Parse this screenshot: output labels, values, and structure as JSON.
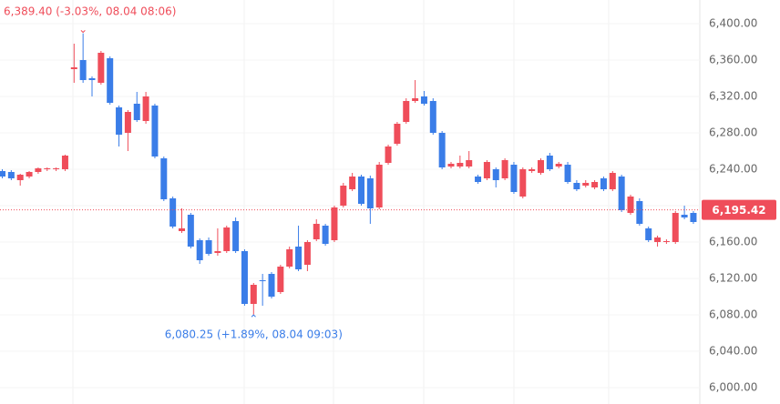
{
  "chart_data": {
    "type": "candlestick",
    "series": [
      {
        "up_color": "#ef4d5a",
        "down_color": "#3a7de8",
        "open": [
          6238,
          6237,
          6228,
          6232,
          6237,
          6240,
          6240,
          6240,
          6350,
          6360,
          6340,
          6335,
          6362,
          6308,
          6280,
          6312,
          6293,
          6310,
          6252,
          6208,
          6172,
          6190,
          6162,
          6162,
          6148,
          6150,
          6183,
          6150,
          6092,
          6118,
          6125,
          6105,
          6133,
          6155,
          6135,
          6163,
          6178,
          6162,
          6200,
          6218,
          6232,
          6230,
          6198,
          6247,
          6268,
          6292,
          6315,
          6320,
          6315,
          6280,
          6243,
          6243,
          6243,
          6232,
          6230,
          6240,
          6230,
          6245,
          6210,
          6238,
          6236,
          6255,
          6243,
          6245,
          6225,
          6222,
          6220,
          6230,
          6218,
          6232,
          6192,
          6205,
          6175,
          6160,
          6160,
          6160,
          6190,
          6192
        ],
        "high": [
          6240,
          6239,
          6235,
          6238,
          6242,
          6242,
          6242,
          6256,
          6378,
          6389.4,
          6342,
          6370,
          6364,
          6310,
          6305,
          6325,
          6325,
          6312,
          6254,
          6210,
          6197,
          6192,
          6164,
          6165,
          6175,
          6178,
          6187,
          6152,
          6115,
          6125,
          6127,
          6135,
          6155,
          6178,
          6162,
          6185,
          6180,
          6200,
          6225,
          6236,
          6234,
          6233,
          6248,
          6267,
          6292,
          6318,
          6338,
          6326,
          6318,
          6282,
          6248,
          6255,
          6260,
          6234,
          6250,
          6242,
          6252,
          6248,
          6242,
          6242,
          6252,
          6258,
          6248,
          6248,
          6228,
          6228,
          6228,
          6232,
          6238,
          6234,
          6212,
          6208,
          6177,
          6167,
          6163,
          6194,
          6200,
          6194
        ],
        "low": [
          6230,
          6228,
          6222,
          6230,
          6235,
          6238,
          6238,
          6238,
          6335,
          6335,
          6320,
          6333,
          6311,
          6265,
          6260,
          6292,
          6290,
          6252,
          6205,
          6175,
          6170,
          6153,
          6136,
          6145,
          6145,
          6148,
          6148,
          6090,
          6080.25,
          6090,
          6098,
          6103,
          6131,
          6128,
          6128,
          6161,
          6156,
          6160,
          6198,
          6216,
          6200,
          6180,
          6196,
          6245,
          6266,
          6290,
          6313,
          6310,
          6278,
          6240,
          6241,
          6241,
          6241,
          6224,
          6228,
          6220,
          6228,
          6213,
          6208,
          6236,
          6234,
          6238,
          6241,
          6224,
          6216,
          6220,
          6218,
          6216,
          6216,
          6193,
          6190,
          6178,
          6160,
          6155,
          6158,
          6158,
          6185,
          6180
        ],
        "close": [
          6232,
          6230,
          6234,
          6237,
          6241,
          6241,
          6241,
          6255,
          6352,
          6338,
          6338,
          6368,
          6313,
          6278,
          6303,
          6294,
          6320,
          6254,
          6207,
          6177,
          6175,
          6155,
          6140,
          6147,
          6150,
          6176,
          6150,
          6092,
          6113,
          6117,
          6100,
          6133,
          6152,
          6130,
          6160,
          6180,
          6158,
          6198,
          6222,
          6232,
          6202,
          6197,
          6245,
          6265,
          6290,
          6315,
          6318,
          6312,
          6280,
          6242,
          6246,
          6247,
          6250,
          6226,
          6248,
          6228,
          6250,
          6215,
          6240,
          6240,
          6250,
          6240,
          6246,
          6226,
          6218,
          6225,
          6226,
          6218,
          6236,
          6195,
          6210,
          6180,
          6162,
          6165,
          6161,
          6192,
          6187,
          6182
        ]
      }
    ],
    "ylim": [
      5982,
      6426
    ],
    "yticks": [
      {
        "value": 6000,
        "label": "6,000.00"
      },
      {
        "value": 6040,
        "label": "6,040.00"
      },
      {
        "value": 6080,
        "label": "6,080.00"
      },
      {
        "value": 6120,
        "label": "6,120.00"
      },
      {
        "value": 6160,
        "label": "6,160.00"
      },
      {
        "value": 6200,
        "label": "6,200.00"
      },
      {
        "value": 6240,
        "label": "6,240.00"
      },
      {
        "value": 6280,
        "label": "6,280.00"
      },
      {
        "value": 6320,
        "label": "6,320.00"
      },
      {
        "value": 6360,
        "label": "6,360.00"
      },
      {
        "value": 6400,
        "label": "6,400.00"
      }
    ],
    "grid": true,
    "current_price": {
      "value": 6195.42,
      "label": "6,195.42",
      "color": "#ef4d5a"
    },
    "annotations": [
      {
        "text": "6,389.40 (-3.03%, 08.04 08:06)",
        "color": "#ef4d5a"
      },
      {
        "text": "6,080.25 (+1.89%, 08.04 09:03)",
        "color": "#3a7de8"
      }
    ]
  }
}
